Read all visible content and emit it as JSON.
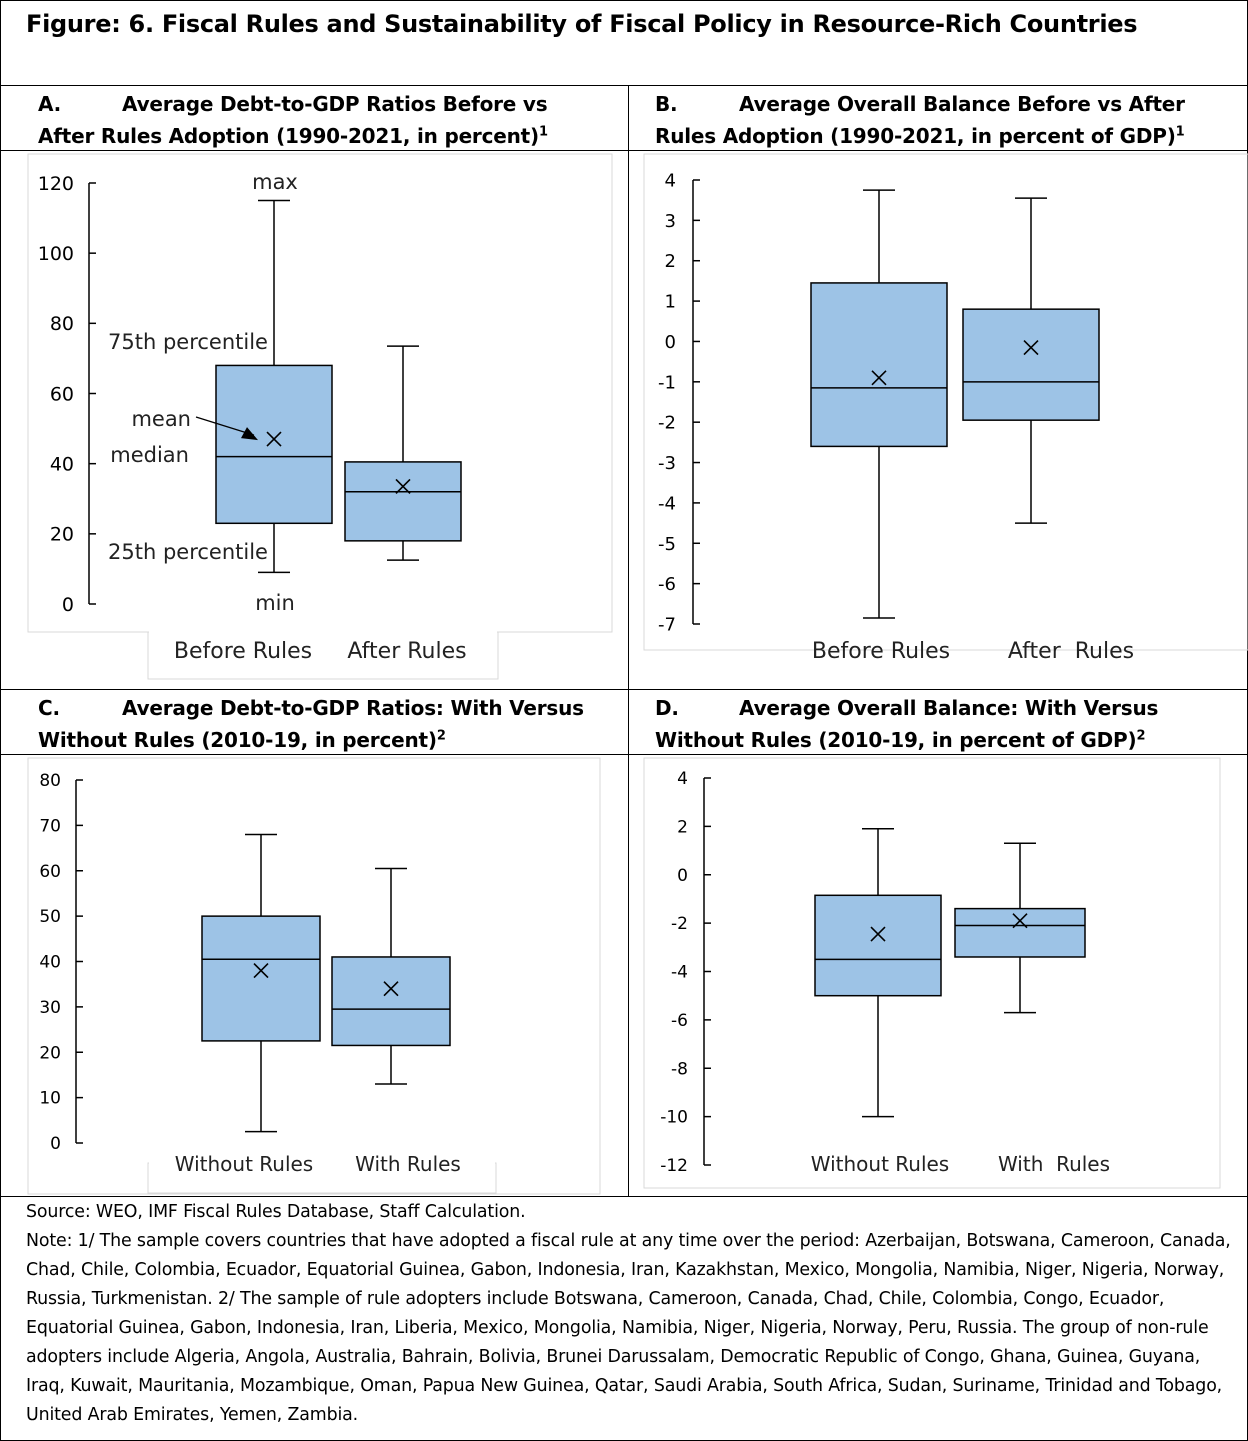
{
  "figure_title": "Figure: 6. Fiscal Rules and Sustainability of Fiscal Policy in Resource-Rich Countries",
  "panels": [
    {
      "letter": "A.",
      "title_line1": "Average Debt-to-GDP Ratios Before vs",
      "title_line2": "After Rules Adoption (1990-2021, in percent)",
      "sup": "1"
    },
    {
      "letter": "B.",
      "title_line1": "Average Overall Balance Before vs After",
      "title_line2": "Rules Adoption (1990-2021, in percent of GDP)",
      "sup": "1"
    },
    {
      "letter": "C.",
      "title_line1": "Average Debt-to-GDP Ratios: With Versus",
      "title_line2": "Without Rules (2010-19, in percent)",
      "sup": "2"
    },
    {
      "letter": "D.",
      "title_line1": "Average Overall Balance: With Versus",
      "title_line2": "Without Rules (2010-19, in percent of GDP)",
      "sup": "2"
    }
  ],
  "annotations": {
    "max": "max",
    "p75": "75th percentile",
    "mean": "mean",
    "median": "median",
    "p25": "25th percentile",
    "min": "min"
  },
  "chart_data": [
    {
      "type": "box",
      "ylim": [
        0,
        120
      ],
      "yticks": [
        "0",
        "20",
        "40",
        "60",
        "80",
        "100",
        "120"
      ],
      "categories": [
        "Before Rules",
        "After Rules"
      ],
      "boxes": [
        {
          "min": 9,
          "q1": 23,
          "median": 42,
          "q3": 68,
          "max": 115,
          "mean": 47
        },
        {
          "min": 12.5,
          "q1": 18,
          "median": 32,
          "q3": 40.5,
          "max": 73.5,
          "mean": 33.5
        }
      ]
    },
    {
      "type": "box",
      "ylim": [
        -7,
        4
      ],
      "yticks": [
        "-7",
        "-6",
        "-5",
        "-4",
        "-3",
        "-2",
        "-1",
        "0",
        "1",
        "2",
        "3",
        "4"
      ],
      "categories": [
        "Before Rules",
        "After  Rules"
      ],
      "boxes": [
        {
          "min": -6.85,
          "q1": -2.6,
          "median": -1.15,
          "q3": 1.45,
          "max": 3.75,
          "mean": -0.9
        },
        {
          "min": -4.5,
          "q1": -1.95,
          "median": -1.0,
          "q3": 0.8,
          "max": 3.55,
          "mean": -0.15
        }
      ]
    },
    {
      "type": "box",
      "ylim": [
        0,
        80
      ],
      "yticks": [
        "0",
        "10",
        "20",
        "30",
        "40",
        "50",
        "60",
        "70",
        "80"
      ],
      "categories": [
        "Without Rules",
        "With Rules"
      ],
      "boxes": [
        {
          "min": 2.5,
          "q1": 22.5,
          "median": 40.5,
          "q3": 50,
          "max": 68,
          "mean": 38
        },
        {
          "min": 13,
          "q1": 21.5,
          "median": 29.5,
          "q3": 41,
          "max": 60.5,
          "mean": 34
        }
      ]
    },
    {
      "type": "box",
      "ylim": [
        -12,
        4
      ],
      "yticks": [
        "-12",
        "-10",
        "-8",
        "-6",
        "-4",
        "-2",
        "0",
        "2",
        "4"
      ],
      "categories": [
        "Without Rules",
        "With  Rules"
      ],
      "boxes": [
        {
          "min": -10,
          "q1": -5,
          "median": -3.5,
          "q3": -0.85,
          "max": 1.9,
          "mean": -2.45
        },
        {
          "min": -5.7,
          "q1": -3.4,
          "median": -2.1,
          "q3": -1.4,
          "max": 1.3,
          "mean": -1.9
        }
      ]
    }
  ],
  "source": "Source: WEO, IMF Fiscal Rules Database, Staff Calculation.",
  "note": "Note: 1/ The sample covers countries that have adopted a fiscal rule at any time over the period: Azerbaijan, Botswana, Cameroon, Canada, Chad, Chile, Colombia, Ecuador, Equatorial Guinea, Gabon, Indonesia, Iran, Kazakhstan, Mexico, Mongolia, Namibia, Niger, Nigeria, Norway, Russia, Turkmenistan. 2/ The sample of rule adopters include Botswana, Cameroon, Canada, Chad, Chile, Colombia, Congo, Ecuador, Equatorial Guinea, Gabon, Indonesia, Iran, Liberia, Mexico, Mongolia, Namibia, Niger, Nigeria, Norway, Peru, Russia. The group of non-rule adopters include Algeria, Angola, Australia, Bahrain, Bolivia, Brunei Darussalam, Democratic Republic of Congo, Ghana, Guinea, Guyana, Iraq, Kuwait, Mauritania, Mozambique, Oman, Papua New Guinea, Qatar, Saudi Arabia, South Africa, Sudan, Suriname, Trinidad and Tobago, United Arab Emirates, Yemen, Zambia.",
  "colors": {
    "box_fill": "#9dc3e6",
    "stroke": "#000000",
    "plot_border": "#d9d9d9"
  }
}
